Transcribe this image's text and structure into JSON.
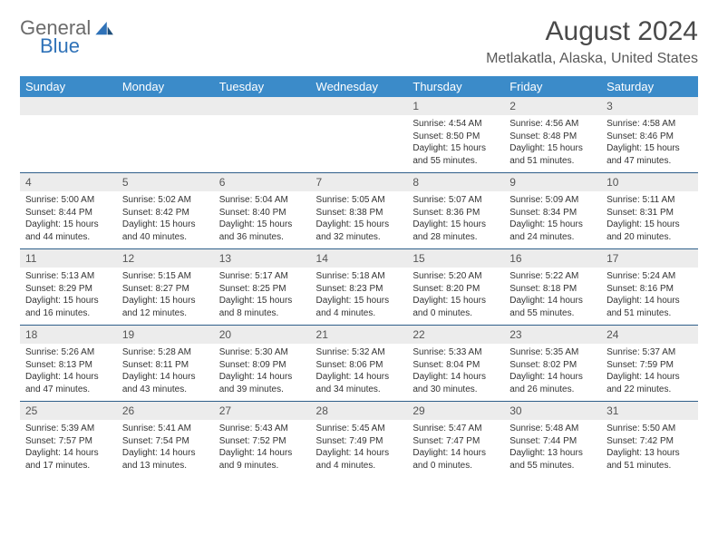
{
  "brand": {
    "line1": "General",
    "line2": "Blue"
  },
  "title": "August 2024",
  "location": "Metlakatla, Alaska, United States",
  "colors": {
    "header_bg": "#3b8bc9",
    "header_text": "#ffffff",
    "daynum_bg": "#ececec",
    "border": "#2f5f8a",
    "brand_gray": "#6b6b6b",
    "brand_blue": "#2f72b8"
  },
  "day_headers": [
    "Sunday",
    "Monday",
    "Tuesday",
    "Wednesday",
    "Thursday",
    "Friday",
    "Saturday"
  ],
  "weeks": [
    [
      null,
      null,
      null,
      null,
      {
        "n": "1",
        "sr": "Sunrise: 4:54 AM",
        "ss": "Sunset: 8:50 PM",
        "d1": "Daylight: 15 hours",
        "d2": "and 55 minutes."
      },
      {
        "n": "2",
        "sr": "Sunrise: 4:56 AM",
        "ss": "Sunset: 8:48 PM",
        "d1": "Daylight: 15 hours",
        "d2": "and 51 minutes."
      },
      {
        "n": "3",
        "sr": "Sunrise: 4:58 AM",
        "ss": "Sunset: 8:46 PM",
        "d1": "Daylight: 15 hours",
        "d2": "and 47 minutes."
      }
    ],
    [
      {
        "n": "4",
        "sr": "Sunrise: 5:00 AM",
        "ss": "Sunset: 8:44 PM",
        "d1": "Daylight: 15 hours",
        "d2": "and 44 minutes."
      },
      {
        "n": "5",
        "sr": "Sunrise: 5:02 AM",
        "ss": "Sunset: 8:42 PM",
        "d1": "Daylight: 15 hours",
        "d2": "and 40 minutes."
      },
      {
        "n": "6",
        "sr": "Sunrise: 5:04 AM",
        "ss": "Sunset: 8:40 PM",
        "d1": "Daylight: 15 hours",
        "d2": "and 36 minutes."
      },
      {
        "n": "7",
        "sr": "Sunrise: 5:05 AM",
        "ss": "Sunset: 8:38 PM",
        "d1": "Daylight: 15 hours",
        "d2": "and 32 minutes."
      },
      {
        "n": "8",
        "sr": "Sunrise: 5:07 AM",
        "ss": "Sunset: 8:36 PM",
        "d1": "Daylight: 15 hours",
        "d2": "and 28 minutes."
      },
      {
        "n": "9",
        "sr": "Sunrise: 5:09 AM",
        "ss": "Sunset: 8:34 PM",
        "d1": "Daylight: 15 hours",
        "d2": "and 24 minutes."
      },
      {
        "n": "10",
        "sr": "Sunrise: 5:11 AM",
        "ss": "Sunset: 8:31 PM",
        "d1": "Daylight: 15 hours",
        "d2": "and 20 minutes."
      }
    ],
    [
      {
        "n": "11",
        "sr": "Sunrise: 5:13 AM",
        "ss": "Sunset: 8:29 PM",
        "d1": "Daylight: 15 hours",
        "d2": "and 16 minutes."
      },
      {
        "n": "12",
        "sr": "Sunrise: 5:15 AM",
        "ss": "Sunset: 8:27 PM",
        "d1": "Daylight: 15 hours",
        "d2": "and 12 minutes."
      },
      {
        "n": "13",
        "sr": "Sunrise: 5:17 AM",
        "ss": "Sunset: 8:25 PM",
        "d1": "Daylight: 15 hours",
        "d2": "and 8 minutes."
      },
      {
        "n": "14",
        "sr": "Sunrise: 5:18 AM",
        "ss": "Sunset: 8:23 PM",
        "d1": "Daylight: 15 hours",
        "d2": "and 4 minutes."
      },
      {
        "n": "15",
        "sr": "Sunrise: 5:20 AM",
        "ss": "Sunset: 8:20 PM",
        "d1": "Daylight: 15 hours",
        "d2": "and 0 minutes."
      },
      {
        "n": "16",
        "sr": "Sunrise: 5:22 AM",
        "ss": "Sunset: 8:18 PM",
        "d1": "Daylight: 14 hours",
        "d2": "and 55 minutes."
      },
      {
        "n": "17",
        "sr": "Sunrise: 5:24 AM",
        "ss": "Sunset: 8:16 PM",
        "d1": "Daylight: 14 hours",
        "d2": "and 51 minutes."
      }
    ],
    [
      {
        "n": "18",
        "sr": "Sunrise: 5:26 AM",
        "ss": "Sunset: 8:13 PM",
        "d1": "Daylight: 14 hours",
        "d2": "and 47 minutes."
      },
      {
        "n": "19",
        "sr": "Sunrise: 5:28 AM",
        "ss": "Sunset: 8:11 PM",
        "d1": "Daylight: 14 hours",
        "d2": "and 43 minutes."
      },
      {
        "n": "20",
        "sr": "Sunrise: 5:30 AM",
        "ss": "Sunset: 8:09 PM",
        "d1": "Daylight: 14 hours",
        "d2": "and 39 minutes."
      },
      {
        "n": "21",
        "sr": "Sunrise: 5:32 AM",
        "ss": "Sunset: 8:06 PM",
        "d1": "Daylight: 14 hours",
        "d2": "and 34 minutes."
      },
      {
        "n": "22",
        "sr": "Sunrise: 5:33 AM",
        "ss": "Sunset: 8:04 PM",
        "d1": "Daylight: 14 hours",
        "d2": "and 30 minutes."
      },
      {
        "n": "23",
        "sr": "Sunrise: 5:35 AM",
        "ss": "Sunset: 8:02 PM",
        "d1": "Daylight: 14 hours",
        "d2": "and 26 minutes."
      },
      {
        "n": "24",
        "sr": "Sunrise: 5:37 AM",
        "ss": "Sunset: 7:59 PM",
        "d1": "Daylight: 14 hours",
        "d2": "and 22 minutes."
      }
    ],
    [
      {
        "n": "25",
        "sr": "Sunrise: 5:39 AM",
        "ss": "Sunset: 7:57 PM",
        "d1": "Daylight: 14 hours",
        "d2": "and 17 minutes."
      },
      {
        "n": "26",
        "sr": "Sunrise: 5:41 AM",
        "ss": "Sunset: 7:54 PM",
        "d1": "Daylight: 14 hours",
        "d2": "and 13 minutes."
      },
      {
        "n": "27",
        "sr": "Sunrise: 5:43 AM",
        "ss": "Sunset: 7:52 PM",
        "d1": "Daylight: 14 hours",
        "d2": "and 9 minutes."
      },
      {
        "n": "28",
        "sr": "Sunrise: 5:45 AM",
        "ss": "Sunset: 7:49 PM",
        "d1": "Daylight: 14 hours",
        "d2": "and 4 minutes."
      },
      {
        "n": "29",
        "sr": "Sunrise: 5:47 AM",
        "ss": "Sunset: 7:47 PM",
        "d1": "Daylight: 14 hours",
        "d2": "and 0 minutes."
      },
      {
        "n": "30",
        "sr": "Sunrise: 5:48 AM",
        "ss": "Sunset: 7:44 PM",
        "d1": "Daylight: 13 hours",
        "d2": "and 55 minutes."
      },
      {
        "n": "31",
        "sr": "Sunrise: 5:50 AM",
        "ss": "Sunset: 7:42 PM",
        "d1": "Daylight: 13 hours",
        "d2": "and 51 minutes."
      }
    ]
  ]
}
